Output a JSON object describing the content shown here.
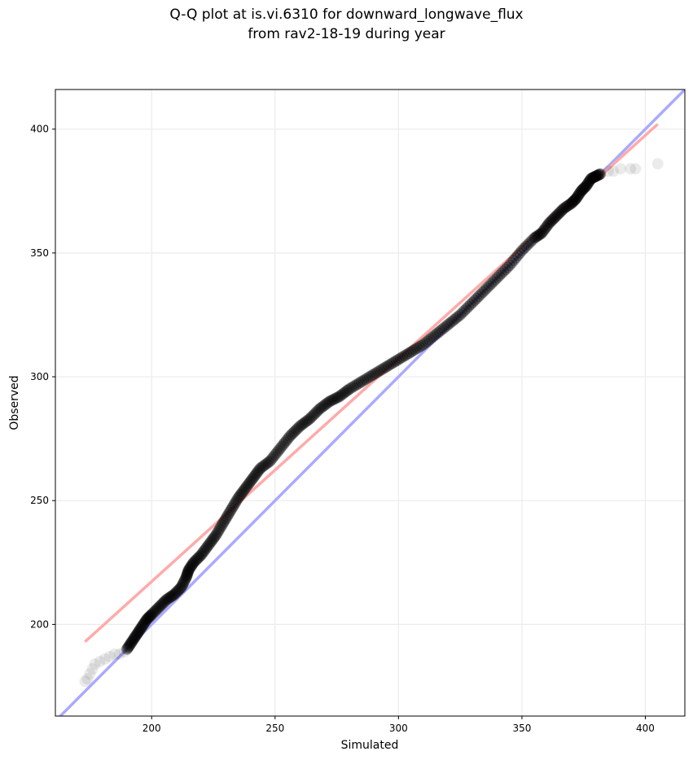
{
  "chart_data": {
    "type": "scatter",
    "title_line1": "Q-Q plot at is.vi.6310 for downward_longwave_flux",
    "title_line2": "from rav2-18-19 during year",
    "xlabel": "Simulated",
    "ylabel": "Observed",
    "xlim": [
      161,
      416
    ],
    "ylim": [
      163,
      416
    ],
    "xticks": [
      200,
      250,
      300,
      350,
      400
    ],
    "yticks": [
      200,
      250,
      300,
      350,
      400
    ],
    "grid": true,
    "series": [
      {
        "marker_color": "#000000",
        "points": [
          [
            173,
            177
          ],
          [
            174,
            178
          ],
          [
            175,
            180
          ],
          [
            176,
            182
          ],
          [
            177,
            184
          ],
          [
            179,
            185
          ],
          [
            181,
            186
          ],
          [
            183,
            187
          ],
          [
            185,
            188
          ],
          [
            187,
            188
          ],
          [
            189,
            189
          ],
          [
            190,
            190
          ],
          [
            192,
            193
          ],
          [
            194,
            196
          ],
          [
            196,
            199
          ],
          [
            198,
            202
          ],
          [
            200,
            204
          ],
          [
            203,
            207
          ],
          [
            206,
            210
          ],
          [
            209,
            212
          ],
          [
            212,
            215
          ],
          [
            214,
            219
          ],
          [
            215,
            222
          ],
          [
            217,
            225
          ],
          [
            220,
            228
          ],
          [
            223,
            232
          ],
          [
            226,
            236
          ],
          [
            229,
            241
          ],
          [
            232,
            246
          ],
          [
            235,
            251
          ],
          [
            238,
            255
          ],
          [
            241,
            259
          ],
          [
            244,
            263
          ],
          [
            248,
            266
          ],
          [
            252,
            271
          ],
          [
            256,
            276
          ],
          [
            260,
            280
          ],
          [
            264,
            283
          ],
          [
            268,
            287
          ],
          [
            272,
            290
          ],
          [
            276,
            292
          ],
          [
            280,
            295
          ],
          [
            285,
            298
          ],
          [
            290,
            301
          ],
          [
            295,
            304
          ],
          [
            300,
            307
          ],
          [
            305,
            310
          ],
          [
            310,
            313
          ],
          [
            315,
            317
          ],
          [
            320,
            321
          ],
          [
            325,
            325
          ],
          [
            330,
            330
          ],
          [
            335,
            335
          ],
          [
            340,
            340
          ],
          [
            345,
            345
          ],
          [
            350,
            351
          ],
          [
            355,
            356
          ],
          [
            358,
            358
          ],
          [
            361,
            362
          ],
          [
            364,
            365
          ],
          [
            367,
            368
          ],
          [
            370,
            370
          ],
          [
            372,
            372
          ],
          [
            374,
            375
          ],
          [
            376,
            377
          ],
          [
            378,
            380
          ],
          [
            380,
            381
          ],
          [
            382,
            382
          ],
          [
            385,
            383
          ],
          [
            387,
            383
          ],
          [
            390,
            384
          ],
          [
            394,
            384
          ],
          [
            396,
            384
          ],
          [
            405,
            386
          ]
        ]
      }
    ],
    "reference_lines": [
      {
        "name": "1:1",
        "color": "#aaaaff",
        "x": [
          161,
          416
        ],
        "y": [
          161,
          416
        ]
      },
      {
        "name": "fit",
        "color": "#ffaaaa",
        "x": [
          173,
          405
        ],
        "y": [
          193,
          402
        ]
      }
    ]
  }
}
